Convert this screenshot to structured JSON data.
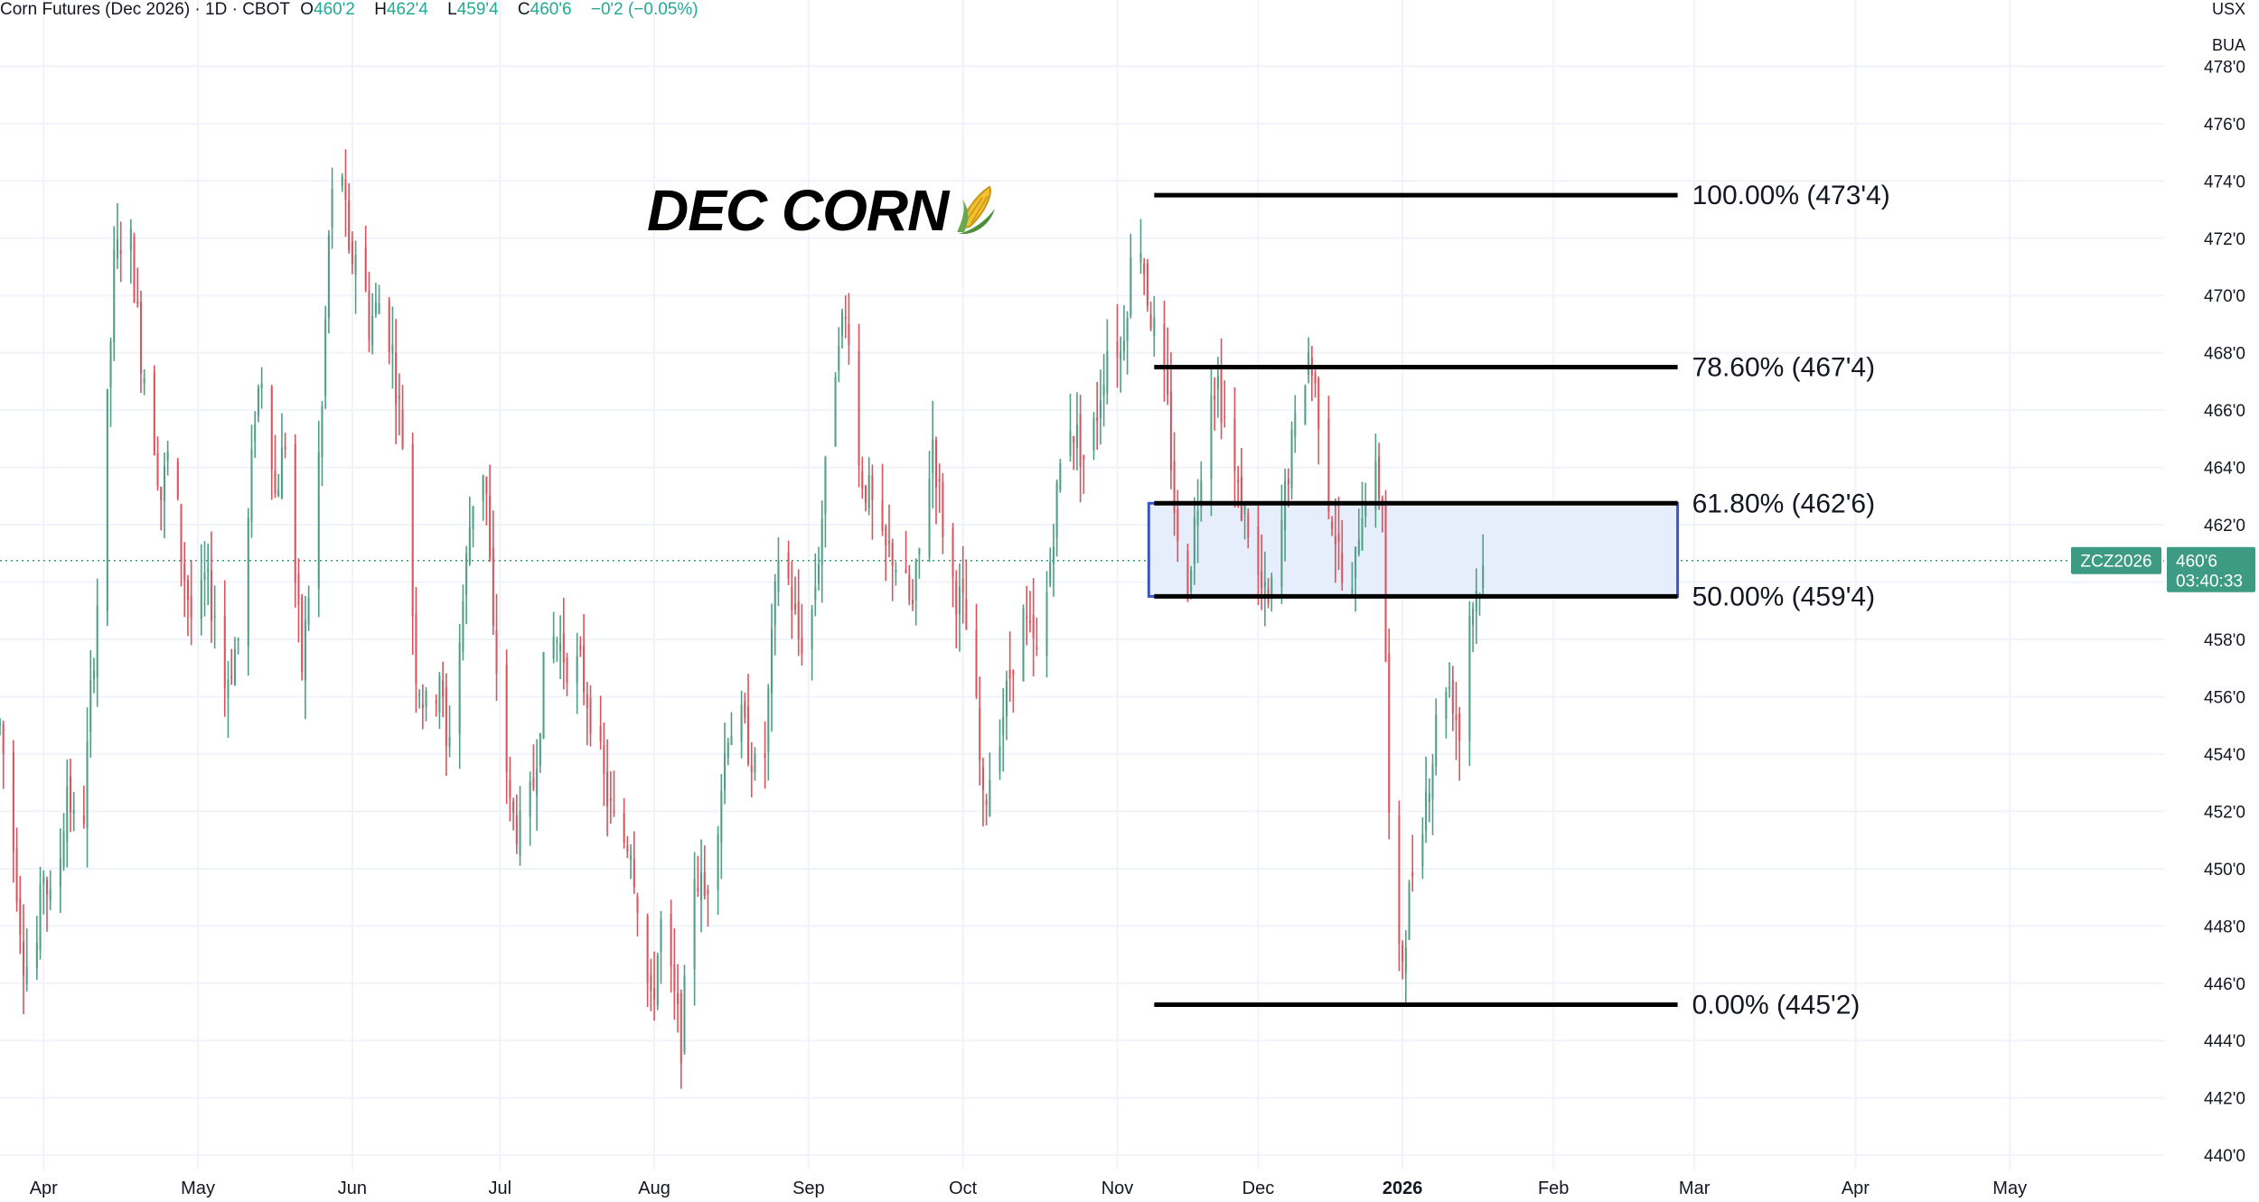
{
  "header": {
    "symbol_title": "Corn Futures (Dec 2026) · 1D · CBOT",
    "open_label": "O",
    "open": "460'2",
    "high_label": "H",
    "high": "462'4",
    "low_label": "L",
    "low": "459'4",
    "close_label": "C",
    "close": "460'6",
    "change": "−0'2 (−0.05%)"
  },
  "axis_units": {
    "currency": "USX",
    "unit": "BUA"
  },
  "annotation": {
    "title": "DEC CORN",
    "icon": "corn-icon"
  },
  "price_tag": {
    "symbol": "ZCZ2026",
    "price": "460'6",
    "countdown": "03:40:33"
  },
  "colors": {
    "up": "#4f9e85",
    "down": "#d9545c",
    "zone_fill": "#e6edfb",
    "zone_border": "#3d55c8",
    "tag": "#3d9a83"
  },
  "chart_data": {
    "type": "candlestick",
    "title": "DEC CORN",
    "ylim": [
      439.5,
      478.8
    ],
    "ytick_values": [
      440,
      442,
      444,
      446,
      448,
      450,
      452,
      454,
      456,
      458,
      460,
      462,
      464,
      466,
      468,
      470,
      472,
      474,
      476,
      478
    ],
    "ytick_labels": [
      "440'0",
      "442'0",
      "444'0",
      "446'0",
      "448'0",
      "450'0",
      "452'0",
      "454'0",
      "456'0",
      "458'0",
      "460'0",
      "462'0",
      "464'0",
      "466'0",
      "468'0",
      "470'0",
      "472'0",
      "474'0",
      "476'0",
      "478'0"
    ],
    "yticks_shown_from": 440,
    "x_month_labels": [
      "Apr",
      "May",
      "Jun",
      "Jul",
      "Aug",
      "Sep",
      "Oct",
      "Nov",
      "Dec",
      "2026",
      "Feb",
      "Mar",
      "Apr",
      "May"
    ],
    "x_month_days": [
      23,
      69,
      115,
      159,
      205,
      251,
      297,
      343,
      385,
      428,
      473,
      515,
      563,
      609
    ],
    "x_range_days": [
      10,
      655
    ],
    "last_close": 460.75,
    "fibonacci": [
      {
        "level": "100.00%",
        "price": "473'4",
        "value": 473.5
      },
      {
        "level": "78.60%",
        "price": "467'4",
        "value": 467.5
      },
      {
        "level": "61.80%",
        "price": "462'6",
        "value": 462.75
      },
      {
        "level": "50.00%",
        "price": "459'4",
        "value": 459.5
      },
      {
        "level": "0.00%",
        "price": "445'2",
        "value": 445.25
      }
    ],
    "fib_x_days": [
      354,
      510
    ],
    "zone": {
      "from": 459.5,
      "to": 462.75
    },
    "anchors": [
      [
        10,
        455
      ],
      [
        13,
        452
      ],
      [
        17,
        447
      ],
      [
        20,
        446
      ],
      [
        23,
        450
      ],
      [
        26,
        448
      ],
      [
        30,
        453
      ],
      [
        34,
        450
      ],
      [
        37,
        456
      ],
      [
        40,
        461
      ],
      [
        44,
        471
      ],
      [
        48,
        473
      ],
      [
        52,
        468
      ],
      [
        55,
        466
      ],
      [
        58,
        463
      ],
      [
        61,
        465
      ],
      [
        64,
        461
      ],
      [
        68,
        458
      ],
      [
        71,
        460
      ],
      [
        74,
        459
      ],
      [
        76,
        456
      ],
      [
        81,
        458
      ],
      [
        84,
        462
      ],
      [
        86,
        466
      ],
      [
        89,
        468
      ],
      [
        92,
        463
      ],
      [
        95,
        465
      ],
      [
        98,
        460
      ],
      [
        100,
        457
      ],
      [
        103,
        461
      ],
      [
        106,
        466
      ],
      [
        108,
        472
      ],
      [
        111,
        476
      ],
      [
        114,
        471
      ],
      [
        117,
        472
      ],
      [
        120,
        469
      ],
      [
        124,
        470
      ],
      [
        127,
        468
      ],
      [
        130,
        465
      ],
      [
        132,
        461
      ],
      [
        134,
        457
      ],
      [
        138,
        455
      ],
      [
        141,
        457
      ],
      [
        143,
        454
      ],
      [
        147,
        458
      ],
      [
        150,
        462
      ],
      [
        153,
        465
      ],
      [
        155,
        463
      ],
      [
        157,
        458
      ],
      [
        160,
        455
      ],
      [
        162,
        452
      ],
      [
        166,
        451
      ],
      [
        169,
        453
      ],
      [
        173,
        458
      ],
      [
        176,
        458
      ],
      [
        180,
        457
      ],
      [
        183,
        457
      ],
      [
        187,
        455
      ],
      [
        190,
        453
      ],
      [
        194,
        451
      ],
      [
        198,
        451
      ],
      [
        201,
        448
      ],
      [
        204,
        445
      ],
      [
        207,
        448
      ],
      [
        210,
        446
      ],
      [
        213,
        444
      ],
      [
        217,
        450
      ],
      [
        220,
        449
      ],
      [
        223,
        451
      ],
      [
        227,
        455
      ],
      [
        231,
        455
      ],
      [
        234,
        454
      ],
      [
        237,
        452
      ],
      [
        239,
        456
      ],
      [
        242,
        461
      ],
      [
        245,
        460
      ],
      [
        248,
        458
      ],
      [
        251,
        458
      ],
      [
        254,
        461
      ],
      [
        257,
        465
      ],
      [
        260,
        469
      ],
      [
        263,
        469
      ],
      [
        266,
        464
      ],
      [
        269,
        463
      ],
      [
        273,
        461
      ],
      [
        276,
        461
      ],
      [
        279,
        460
      ],
      [
        282,
        459
      ],
      [
        285,
        462
      ],
      [
        288,
        465
      ],
      [
        291,
        462
      ],
      [
        294,
        460
      ],
      [
        297,
        459
      ],
      [
        300,
        457
      ],
      [
        303,
        452
      ],
      [
        306,
        454
      ],
      [
        310,
        456
      ],
      [
        314,
        459
      ],
      [
        317,
        458
      ],
      [
        320,
        457
      ],
      [
        324,
        462
      ],
      [
        328,
        466
      ],
      [
        331,
        465
      ],
      [
        334,
        464
      ],
      [
        337,
        466
      ],
      [
        341,
        469
      ],
      [
        344,
        468
      ],
      [
        347,
        471
      ],
      [
        349,
        473
      ],
      [
        352,
        470
      ],
      [
        355,
        468
      ],
      [
        358,
        466
      ],
      [
        361,
        461
      ],
      [
        364,
        460
      ],
      [
        367,
        463
      ],
      [
        370,
        467
      ],
      [
        373,
        467
      ],
      [
        376,
        465
      ],
      [
        379,
        463
      ],
      [
        382,
        462
      ],
      [
        385,
        460
      ],
      [
        388,
        459
      ],
      [
        391,
        461
      ],
      [
        394,
        464
      ],
      [
        397,
        466
      ],
      [
        400,
        468
      ],
      [
        403,
        466
      ],
      [
        406,
        463
      ],
      [
        409,
        461
      ],
      [
        412,
        458
      ],
      [
        415,
        462
      ],
      [
        418,
        464
      ],
      [
        422,
        463
      ],
      [
        425,
        446
      ],
      [
        428,
        447
      ],
      [
        431,
        450
      ],
      [
        434,
        452
      ],
      [
        437,
        454
      ],
      [
        440,
        457
      ],
      [
        443,
        456
      ],
      [
        446,
        454
      ],
      [
        448,
        459
      ],
      [
        451,
        460
      ],
      [
        454,
        460.75
      ]
    ]
  }
}
